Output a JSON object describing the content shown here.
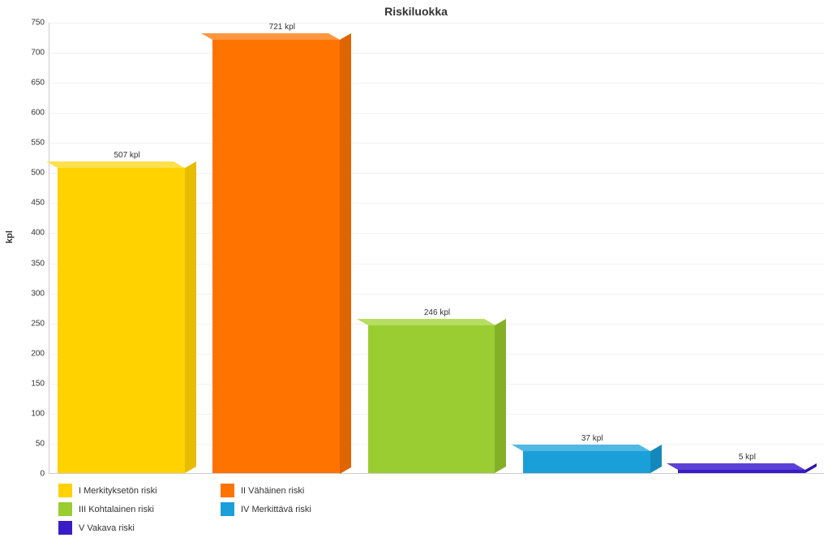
{
  "chart": {
    "type": "bar",
    "title": "Riskiluokka",
    "title_fontsize": 14,
    "ylabel": "kpl",
    "ylabel_fontsize": 11,
    "value_label_suffix": " kpl",
    "ylim": [
      0,
      750
    ],
    "ytick_step": 50,
    "background_color": "#ffffff",
    "grid_color": "#f2f2f2",
    "axis_color": "#cccccc",
    "text_color": "#333333",
    "tick_fontsize": 10,
    "value_label_fontsize": 10,
    "legend_fontsize": 11,
    "depth_x": 14,
    "depth_y": 8,
    "bar_width_ratio": 0.82,
    "series": [
      {
        "label": "I Merkityksetön riski",
        "value": 507,
        "color": "#ffd200",
        "color_top": "#ffe04d",
        "color_side": "#e6bd00"
      },
      {
        "label": "II Vähäinen riski",
        "value": 721,
        "color": "#ff7300",
        "color_top": "#ff9640",
        "color_side": "#e06500"
      },
      {
        "label": "III Kohtalainen riski",
        "value": 246,
        "color": "#9acd32",
        "color_top": "#b5dd60",
        "color_side": "#84b028"
      },
      {
        "label": "IV Merkittävä riski",
        "value": 37,
        "color": "#1a9fd9",
        "color_top": "#4fb8e4",
        "color_side": "#1588bb"
      },
      {
        "label": "V Vakava riski",
        "value": 5,
        "color": "#3a1cc7",
        "color_top": "#5b42d6",
        "color_side": "#2f16a3"
      }
    ]
  }
}
